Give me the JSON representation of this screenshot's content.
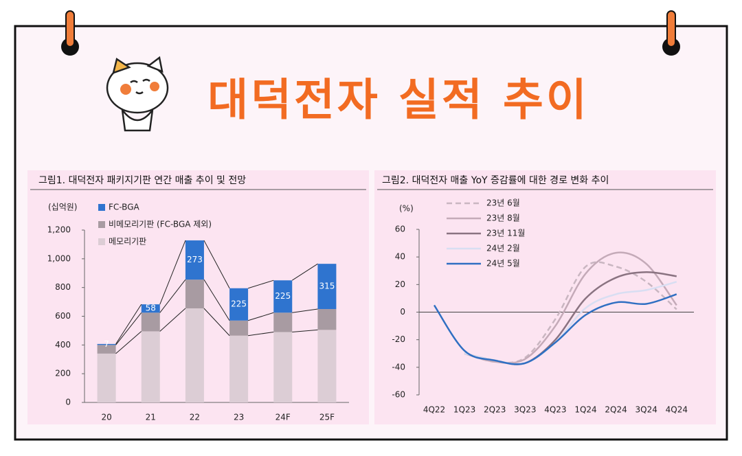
{
  "header": {
    "title": "대덕전자 실적 추이"
  },
  "chart_data": [
    {
      "type": "stacked-bar",
      "title": "그림1. 대덕전자 패키지기판 연간 매출 추이 및 전망",
      "y_label": "(십억원)",
      "categories": [
        "20",
        "21",
        "22",
        "23",
        "24F",
        "25F"
      ],
      "series": [
        {
          "name": "메모리기판",
          "color": "#dccdd5",
          "values": [
            340,
            495,
            655,
            465,
            490,
            505
          ]
        },
        {
          "name": "비메모리기판 (FC-BGA 제외)",
          "color": "#a89ba2",
          "values": [
            60,
            130,
            200,
            105,
            135,
            145
          ]
        },
        {
          "name": "FC-BGA",
          "color": "#2f74cf",
          "values": [
            7,
            58,
            273,
            225,
            225,
            315
          ],
          "show_values": true
        }
      ],
      "ylim": [
        0,
        1200
      ],
      "yticks": [
        0,
        200,
        400,
        600,
        800,
        {
          "value": 1000,
          "label": "1,000"
        },
        {
          "value": 1200,
          "label": "1,200"
        }
      ]
    },
    {
      "type": "line",
      "title": "그림2. 대덕전자 매출 YoY 증감률에 대한 경로 변화 추이",
      "y_label": "(%)",
      "categories": [
        "4Q22",
        "1Q23",
        "2Q23",
        "3Q23",
        "4Q23",
        "1Q24",
        "2Q24",
        "3Q24",
        "4Q24"
      ],
      "series": [
        {
          "name": "23년 6월",
          "color": "#c9b6c1",
          "style": "dashed",
          "values": [
            null,
            -30,
            -36,
            -33,
            -5,
            33,
            33,
            22,
            2
          ]
        },
        {
          "name": "23년 8월",
          "color": "#c4aab8",
          "values": [
            null,
            -30,
            -36,
            -34,
            -10,
            28,
            43,
            35,
            5
          ]
        },
        {
          "name": "23년 11월",
          "color": "#8a7381",
          "values": [
            null,
            -30,
            -35,
            -37,
            -20,
            10,
            25,
            29,
            26
          ]
        },
        {
          "name": "24년 2월",
          "color": "#d8def2",
          "values": [
            null,
            -30,
            -35,
            -37,
            -22,
            3,
            13,
            16,
            22
          ]
        },
        {
          "name": "24년 5월",
          "color": "#2f6fc2",
          "values": [
            5,
            -28,
            -35,
            -37,
            -22,
            -2,
            7,
            6,
            13
          ]
        }
      ],
      "ylim": [
        -60,
        60
      ],
      "yticks": [
        -60,
        -40,
        -20,
        0,
        20,
        40,
        60
      ]
    }
  ]
}
